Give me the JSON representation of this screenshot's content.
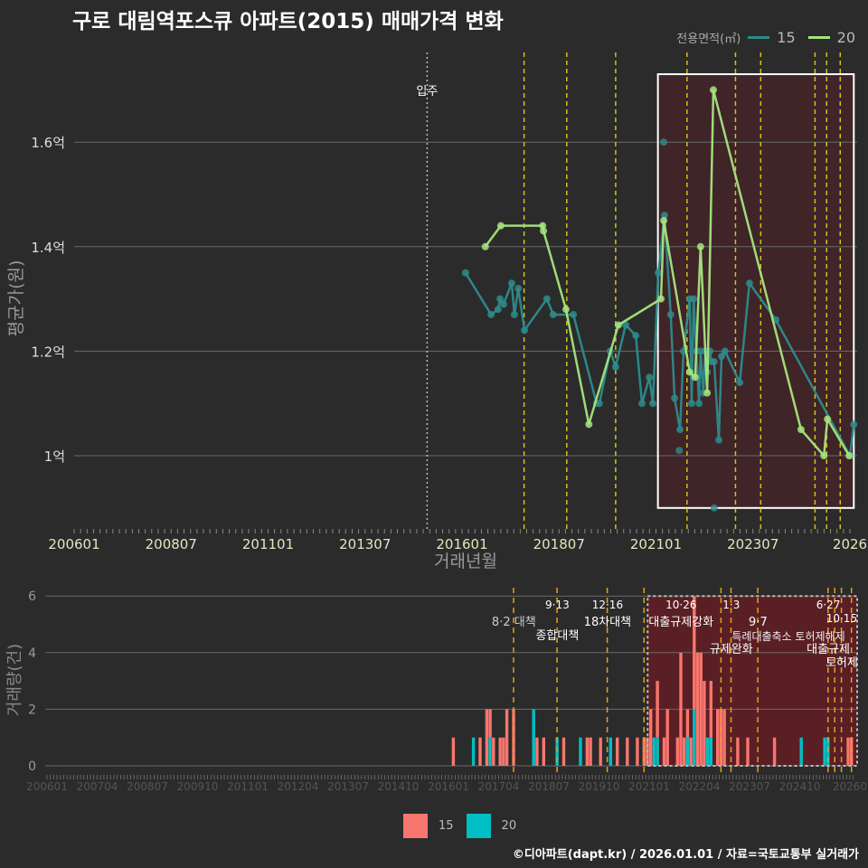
{
  "title": "구로 대림역포스큐 아파트(2015) 매매가격 변화",
  "caption": "©디아파트(dapt.kr) / 2026.01.01 / 자료=국토교통부 실거래가",
  "colors": {
    "s15_line": "#2e8b8b",
    "s20_line": "#a6e57e",
    "bar15": "#f8766d",
    "bar20": "#00bfc4",
    "policy": "#d4c21a",
    "policy_bottom": "#e6a01a",
    "highlight": "#5a1f24"
  },
  "chart_data": [
    {
      "type": "line",
      "title": "구로 대림역포스큐 아파트(2015) 매매가격 변화",
      "xlabel": "거래년월",
      "ylabel": "평균가(원)",
      "legend_title": "전용면적(㎡)",
      "legend_position": "top-right",
      "x_ticks": [
        "200601",
        "200807",
        "201101",
        "201307",
        "201601",
        "201807",
        "202101",
        "202307",
        "2026"
      ],
      "y_ticks": [
        {
          "v": 1.0,
          "label": "1억"
        },
        {
          "v": 1.2,
          "label": "1.2억"
        },
        {
          "v": 1.4,
          "label": "1.4억"
        },
        {
          "v": 1.6,
          "label": "1.6억"
        }
      ],
      "ylim": [
        0.86,
        1.76
      ],
      "xlim_years": [
        2006.0,
        2026.1
      ],
      "move_in": {
        "t": 2015.1,
        "label": "입주"
      },
      "policy_lines": [
        2017.6,
        2018.7,
        2019.96,
        2021.8,
        2023.05,
        2023.7,
        2025.1,
        2025.4,
        2025.75
      ],
      "highlight_range": [
        2021.05,
        2026.1
      ],
      "highlight_value_range": [
        0.9,
        1.73
      ],
      "series": [
        {
          "name": "15",
          "points": [
            [
              2016.09,
              1.35
            ],
            [
              2016.75,
              1.27
            ],
            [
              2016.93,
              1.28
            ],
            [
              2016.98,
              1.3
            ],
            [
              2017.07,
              1.29
            ],
            [
              2017.28,
              1.33
            ],
            [
              2017.35,
              1.27
            ],
            [
              2017.45,
              1.32
            ],
            [
              2017.61,
              1.24
            ],
            [
              2018.19,
              1.3
            ],
            [
              2018.35,
              1.27
            ],
            [
              2018.87,
              1.27
            ],
            [
              2019.47,
              1.1
            ],
            [
              2019.54,
              1.1
            ],
            [
              2019.82,
              1.2
            ],
            [
              2019.96,
              1.17
            ],
            [
              2020.22,
              1.25
            ],
            [
              2020.48,
              1.23
            ],
            [
              2020.64,
              1.1
            ],
            [
              2020.83,
              1.15
            ],
            [
              2020.92,
              1.1
            ],
            [
              2021.06,
              1.35
            ],
            [
              2021.22,
              1.46
            ],
            [
              2021.38,
              1.27
            ],
            [
              2021.48,
              1.11
            ],
            [
              2021.62,
              1.05
            ],
            [
              2021.71,
              1.2
            ],
            [
              2021.87,
              1.3
            ],
            [
              2021.92,
              1.1
            ],
            [
              2021.97,
              1.3
            ],
            [
              2022.04,
              1.2
            ],
            [
              2022.11,
              1.1
            ],
            [
              2022.15,
              1.2
            ],
            [
              2022.22,
              1.12
            ],
            [
              2022.27,
              1.2
            ],
            [
              2022.32,
              1.16
            ],
            [
              2022.39,
              1.2
            ],
            [
              2022.43,
              1.18
            ],
            [
              2022.5,
              1.18
            ],
            [
              2022.62,
              1.03
            ],
            [
              2022.69,
              1.19
            ],
            [
              2022.78,
              1.2
            ],
            [
              2023.16,
              1.14
            ],
            [
              2023.41,
              1.33
            ],
            [
              2024.09,
              1.26
            ],
            [
              2026.0,
              1.0
            ],
            [
              2026.1,
              1.06
            ]
          ]
        },
        {
          "name": "20",
          "points": [
            [
              2016.6,
              1.4
            ],
            [
              2017.0,
              1.44
            ],
            [
              2018.08,
              1.44
            ],
            [
              2018.1,
              1.43
            ],
            [
              2018.68,
              1.28
            ],
            [
              2019.27,
              1.06
            ],
            [
              2020.03,
              1.25
            ],
            [
              2021.13,
              1.3
            ],
            [
              2021.2,
              1.45
            ],
            [
              2021.87,
              1.16
            ],
            [
              2022.01,
              1.15
            ],
            [
              2022.15,
              1.4
            ],
            [
              2022.32,
              1.12
            ],
            [
              2022.48,
              1.7
            ],
            [
              2024.74,
              1.05
            ],
            [
              2025.33,
              1.0
            ],
            [
              2025.42,
              1.07
            ],
            [
              2025.98,
              1.0
            ]
          ]
        }
      ],
      "extra_points_15": [
        [
          2021.2,
          1.6
        ],
        [
          2021.6,
          1.01
        ],
        [
          2022.5,
          0.9
        ]
      ]
    },
    {
      "type": "bar",
      "ylabel": "거래량(건)",
      "y_ticks": [
        0,
        2,
        4,
        6
      ],
      "ylim": [
        0,
        6
      ],
      "x_ticks": [
        "200601",
        "200704",
        "200807",
        "200910",
        "201101",
        "201204",
        "201307",
        "201410",
        "201601",
        "201704",
        "201807",
        "201910",
        "202101",
        "202204",
        "202307",
        "202410",
        "20260"
      ],
      "stacked": true,
      "legend": [
        "15",
        "20"
      ],
      "legend_position": "bottom",
      "policy_lines": [
        "201708",
        "201809",
        "201912",
        "202011",
        "202210",
        "202301",
        "202309",
        "202506",
        "202508",
        "202510",
        "202601"
      ],
      "highlight_months": [
        "202012",
        "202601"
      ],
      "annotations": [
        {
          "month": "201708",
          "line1": "",
          "line2": "8·2 대책"
        },
        {
          "month": "201809",
          "line1": "9·13",
          "line2": "종합대책"
        },
        {
          "month": "201912",
          "line1": "12·16",
          "line2": "18차대책"
        },
        {
          "month": "202110",
          "line1": "10·26",
          "line2": "대출규제강화"
        },
        {
          "month": "202301",
          "line1": "1·3",
          "line2": "규제완화"
        },
        {
          "month": "202309",
          "line1": "",
          "line2": "9·7"
        },
        {
          "month": "202506",
          "line1": "6·27",
          "line2": "대출규제"
        },
        {
          "month": "202510",
          "line1": "10·15",
          "line2": "토허제"
        },
        {
          "month": "202407",
          "line1": "",
          "line2": "",
          "line3": "특례대출축소 토허제해제"
        }
      ],
      "bars": [
        [
          "201602",
          1,
          0
        ],
        [
          "201608",
          0,
          1
        ],
        [
          "201610",
          1,
          0
        ],
        [
          "201612",
          2,
          0
        ],
        [
          "201701",
          1,
          1
        ],
        [
          "201702",
          1,
          0
        ],
        [
          "201704",
          1,
          0
        ],
        [
          "201705",
          1,
          0
        ],
        [
          "201706",
          2,
          0
        ],
        [
          "201708",
          2,
          0
        ],
        [
          "201802",
          0,
          2
        ],
        [
          "201803",
          1,
          0
        ],
        [
          "201805",
          1,
          0
        ],
        [
          "201809",
          0,
          1
        ],
        [
          "201811",
          1,
          0
        ],
        [
          "201904",
          0,
          1
        ],
        [
          "201906",
          1,
          0
        ],
        [
          "201907",
          1,
          0
        ],
        [
          "201910",
          1,
          0
        ],
        [
          "202001",
          0,
          1
        ],
        [
          "202003",
          1,
          0
        ],
        [
          "202006",
          1,
          0
        ],
        [
          "202009",
          1,
          0
        ],
        [
          "202011",
          1,
          0
        ],
        [
          "202012",
          1,
          0
        ],
        [
          "202101",
          2,
          0
        ],
        [
          "202102",
          0,
          1
        ],
        [
          "202103",
          2,
          1
        ],
        [
          "202105",
          1,
          0
        ],
        [
          "202106",
          2,
          0
        ],
        [
          "202109",
          1,
          0
        ],
        [
          "202110",
          4,
          0
        ],
        [
          "202111",
          1,
          0
        ],
        [
          "202112",
          1,
          1
        ],
        [
          "202201",
          1,
          0
        ],
        [
          "202202",
          4,
          2
        ],
        [
          "202203",
          4,
          0
        ],
        [
          "202204",
          4,
          0
        ],
        [
          "202205",
          3,
          0
        ],
        [
          "202206",
          0,
          1
        ],
        [
          "202207",
          2,
          1
        ],
        [
          "202209",
          2,
          0
        ],
        [
          "202210",
          2,
          0
        ],
        [
          "202211",
          2,
          0
        ],
        [
          "202303",
          1,
          0
        ],
        [
          "202306",
          1,
          0
        ],
        [
          "202402",
          1,
          0
        ],
        [
          "202410",
          0,
          1
        ],
        [
          "202505",
          0,
          1
        ],
        [
          "202506",
          0,
          1
        ],
        [
          "202512",
          1,
          0
        ],
        [
          "202601",
          1,
          0
        ]
      ]
    }
  ]
}
